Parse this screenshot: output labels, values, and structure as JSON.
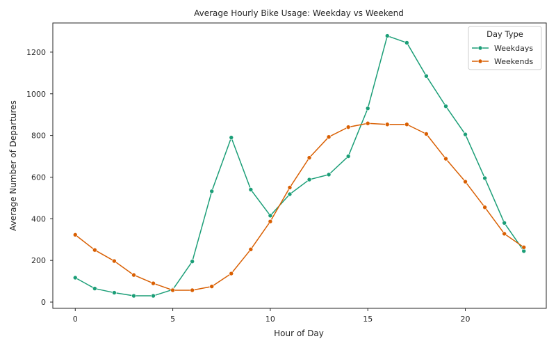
{
  "chart_data": {
    "type": "line",
    "title": "Average Hourly Bike Usage: Weekday vs Weekend",
    "xlabel": "Hour of Day",
    "ylabel": "Average Number of Departures",
    "xlim": [
      -1.15,
      24.15
    ],
    "ylim": [
      -30,
      1340
    ],
    "xticks": [
      0,
      5,
      10,
      15,
      20
    ],
    "yticks": [
      0,
      200,
      400,
      600,
      800,
      1000,
      1200
    ],
    "grid": false,
    "legend": {
      "title": "Day Type",
      "placement": "top-right"
    },
    "x": [
      0,
      1,
      2,
      3,
      4,
      5,
      6,
      7,
      8,
      9,
      10,
      11,
      12,
      13,
      14,
      15,
      16,
      17,
      18,
      19,
      20,
      21,
      22,
      23
    ],
    "series": [
      {
        "name": "Weekdays",
        "color": "#1b9e77",
        "values": [
          117,
          65,
          45,
          30,
          30,
          60,
          195,
          532,
          790,
          540,
          415,
          518,
          588,
          612,
          700,
          930,
          1278,
          1245,
          1085,
          940,
          805,
          595,
          380,
          245
        ]
      },
      {
        "name": "Weekends",
        "color": "#d95f02",
        "values": [
          323,
          250,
          197,
          130,
          90,
          57,
          57,
          75,
          137,
          253,
          387,
          550,
          693,
          793,
          840,
          858,
          853,
          853,
          807,
          688,
          578,
          455,
          328,
          263
        ]
      }
    ]
  }
}
